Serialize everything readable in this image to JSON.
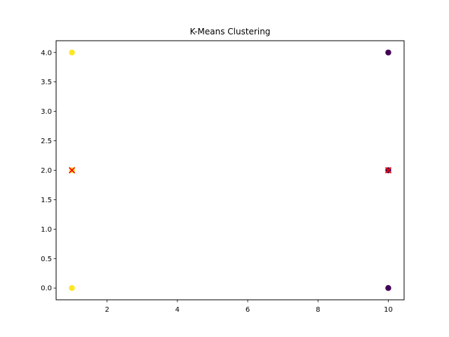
{
  "chart_data": {
    "type": "scatter",
    "title": "K-Means Clustering",
    "xlabel": "",
    "ylabel": "",
    "xlim": [
      0.55,
      10.45
    ],
    "ylim": [
      -0.2,
      4.2
    ],
    "x_ticks": [
      2,
      4,
      6,
      8,
      10
    ],
    "y_ticks": [
      0.0,
      0.5,
      1.0,
      1.5,
      2.0,
      2.5,
      3.0,
      3.5,
      4.0
    ],
    "x_tick_labels": [
      "2",
      "4",
      "6",
      "8",
      "10"
    ],
    "y_tick_labels": [
      "0.0",
      "0.5",
      "1.0",
      "1.5",
      "2.0",
      "2.5",
      "3.0",
      "3.5",
      "4.0"
    ],
    "grid": false,
    "series": [
      {
        "points": [
          {
            "x": 1,
            "y": 4
          },
          {
            "x": 1,
            "y": 2
          },
          {
            "x": 1,
            "y": 0
          }
        ],
        "color": "#fde725",
        "marker": "circle"
      },
      {
        "points": [
          {
            "x": 10,
            "y": 4
          },
          {
            "x": 10,
            "y": 2
          },
          {
            "x": 10,
            "y": 0
          }
        ],
        "color": "#440154",
        "marker": "circle"
      },
      {
        "points": [
          {
            "x": 1,
            "y": 2
          },
          {
            "x": 10,
            "y": 2
          }
        ],
        "color": "#ff0000",
        "marker": "x"
      }
    ]
  }
}
